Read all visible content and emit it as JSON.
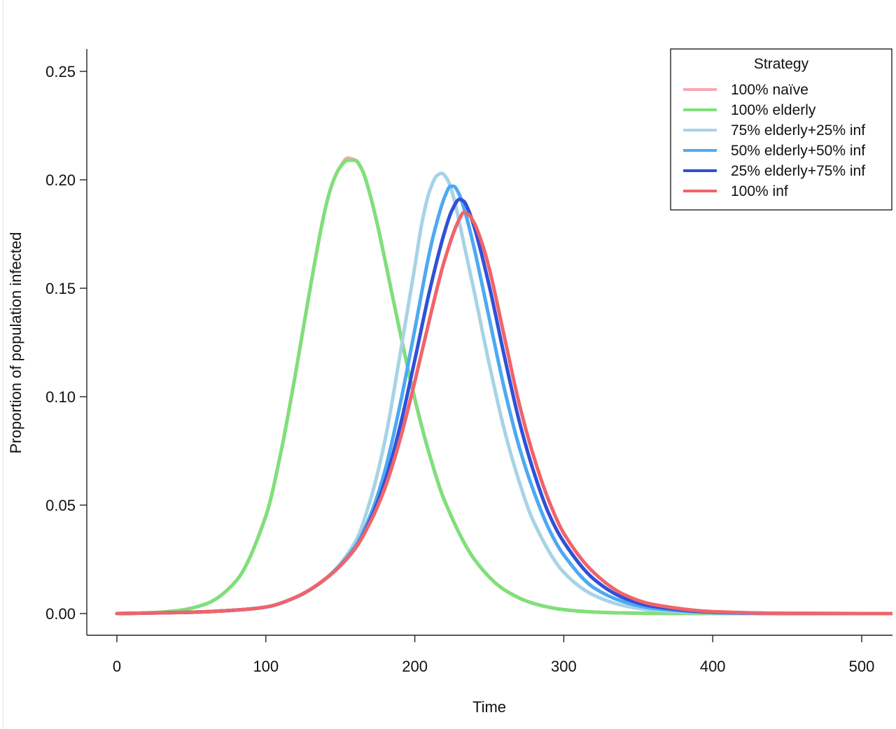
{
  "chart_data": {
    "type": "line",
    "xlabel": "Time",
    "ylabel": "Proportion of population infected",
    "xlim": [
      -20,
      520
    ],
    "ylim": [
      -0.01,
      0.25
    ],
    "xticks": [
      0,
      100,
      200,
      300,
      400,
      500
    ],
    "yticks": [
      0.0,
      0.05,
      0.1,
      0.15,
      0.2,
      0.25
    ],
    "xtick_labels": [
      "0",
      "100",
      "200",
      "300",
      "400",
      "500"
    ],
    "ytick_labels": [
      "0.00",
      "0.05",
      "0.10",
      "0.15",
      "0.20",
      "0.25"
    ],
    "grid": false,
    "legend": {
      "title": "Strategy",
      "placement": "top-right"
    },
    "series": [
      {
        "name": "100% naïve",
        "color": "#f4a6b2",
        "x": [
          0,
          20,
          40,
          60,
          80,
          100,
          110,
          120,
          130,
          140,
          145,
          150,
          155,
          160,
          165,
          170,
          175,
          180,
          190,
          200,
          210,
          220,
          240,
          260,
          280,
          300,
          320,
          340,
          360,
          400,
          450,
          500,
          520
        ],
        "y": [
          0.0,
          0.0003,
          0.0013,
          0.0045,
          0.015,
          0.045,
          0.074,
          0.111,
          0.151,
          0.187,
          0.199,
          0.206,
          0.21,
          0.209,
          0.204,
          0.193,
          0.179,
          0.163,
          0.13,
          0.099,
          0.073,
          0.052,
          0.025,
          0.011,
          0.0046,
          0.0018,
          0.0007,
          0.0003,
          0.0001,
          0.0,
          0.0,
          0.0,
          0.0
        ]
      },
      {
        "name": "100% elderly",
        "color": "#7fe07a",
        "x": [
          0,
          20,
          40,
          60,
          80,
          100,
          110,
          120,
          130,
          140,
          145,
          150,
          155,
          160,
          165,
          170,
          175,
          180,
          190,
          200,
          210,
          220,
          240,
          260,
          280,
          300,
          320,
          340,
          360,
          400,
          450,
          500,
          520
        ],
        "y": [
          0.0,
          0.0003,
          0.0013,
          0.0045,
          0.015,
          0.045,
          0.074,
          0.111,
          0.151,
          0.187,
          0.199,
          0.206,
          0.209,
          0.209,
          0.204,
          0.193,
          0.179,
          0.163,
          0.13,
          0.099,
          0.073,
          0.052,
          0.025,
          0.011,
          0.0046,
          0.0018,
          0.0007,
          0.0003,
          0.0001,
          0.0,
          0.0,
          0.0,
          0.0
        ]
      },
      {
        "name": "75% elderly+25% inf",
        "color": "#a7d3e6",
        "x": [
          0,
          50,
          80,
          100,
          120,
          140,
          160,
          170,
          180,
          190,
          200,
          205,
          210,
          215,
          218,
          222,
          226,
          230,
          240,
          250,
          260,
          270,
          280,
          300,
          320,
          340,
          360,
          400,
          450,
          500,
          520
        ],
        "y": [
          0.0,
          0.0006,
          0.0016,
          0.003,
          0.0075,
          0.016,
          0.033,
          0.052,
          0.08,
          0.119,
          0.16,
          0.181,
          0.195,
          0.202,
          0.203,
          0.2,
          0.192,
          0.18,
          0.148,
          0.115,
          0.085,
          0.061,
          0.042,
          0.019,
          0.0085,
          0.0037,
          0.0016,
          0.0003,
          0.0,
          0.0,
          0.0
        ]
      },
      {
        "name": "50% elderly+50% inf",
        "color": "#4da9f2",
        "x": [
          0,
          50,
          80,
          100,
          120,
          140,
          160,
          170,
          180,
          190,
          200,
          210,
          215,
          220,
          224,
          226,
          230,
          235,
          240,
          250,
          260,
          270,
          280,
          290,
          300,
          320,
          340,
          360,
          400,
          450,
          500,
          520
        ],
        "y": [
          0.0,
          0.0006,
          0.0016,
          0.003,
          0.0075,
          0.016,
          0.031,
          0.045,
          0.066,
          0.096,
          0.131,
          0.167,
          0.181,
          0.192,
          0.197,
          0.197,
          0.193,
          0.182,
          0.168,
          0.136,
          0.104,
          0.077,
          0.056,
          0.039,
          0.027,
          0.012,
          0.0055,
          0.0024,
          0.0005,
          0.0,
          0.0,
          0.0
        ]
      },
      {
        "name": "25% elderly+75% inf",
        "color": "#3050d8",
        "x": [
          0,
          50,
          80,
          100,
          120,
          140,
          160,
          170,
          180,
          190,
          200,
          210,
          220,
          225,
          230,
          233,
          236,
          240,
          250,
          260,
          270,
          280,
          290,
          300,
          320,
          340,
          360,
          400,
          450,
          500,
          520
        ],
        "y": [
          0.0,
          0.0006,
          0.0016,
          0.003,
          0.0075,
          0.016,
          0.03,
          0.043,
          0.061,
          0.086,
          0.117,
          0.149,
          0.176,
          0.186,
          0.191,
          0.19,
          0.186,
          0.178,
          0.151,
          0.119,
          0.089,
          0.065,
          0.046,
          0.033,
          0.016,
          0.0073,
          0.0033,
          0.0007,
          0.0001,
          0.0,
          0.0
        ]
      },
      {
        "name": "100% inf",
        "color": "#f0646a",
        "x": [
          0,
          50,
          80,
          100,
          120,
          140,
          160,
          170,
          180,
          190,
          200,
          210,
          220,
          230,
          233,
          236,
          240,
          245,
          250,
          260,
          270,
          280,
          290,
          300,
          320,
          340,
          360,
          400,
          450,
          500,
          520
        ],
        "y": [
          0.0,
          0.0006,
          0.0016,
          0.003,
          0.0075,
          0.016,
          0.03,
          0.042,
          0.058,
          0.08,
          0.107,
          0.136,
          0.163,
          0.182,
          0.185,
          0.184,
          0.18,
          0.171,
          0.159,
          0.128,
          0.097,
          0.072,
          0.052,
          0.037,
          0.019,
          0.0089,
          0.0042,
          0.0009,
          0.0001,
          0.0,
          0.0
        ]
      }
    ]
  }
}
